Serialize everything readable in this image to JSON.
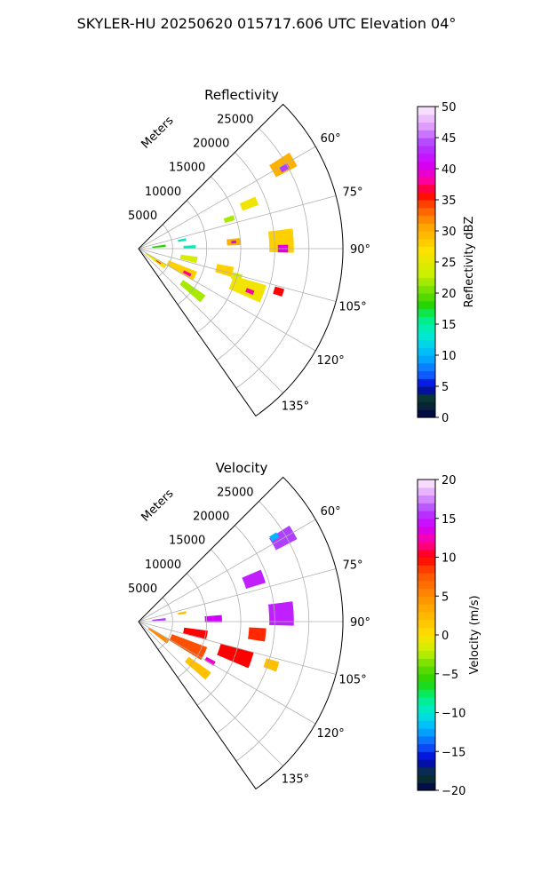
{
  "figure_title": "SKYLER-HU  20250620  015717.606 UTC Elevation 04°",
  "colors": {
    "grid": "#b0b0b0",
    "frame": "#000000"
  },
  "chart_data": [
    {
      "type": "heatmap",
      "projection": "polar-sector",
      "title": "Reflectivity",
      "radial_label": "Meters",
      "radial_ticks": [
        "5000",
        "10000",
        "15000",
        "20000",
        "25000"
      ],
      "radial_tick_values": [
        5000,
        10000,
        15000,
        20000,
        25000
      ],
      "rlim": [
        0,
        30000
      ],
      "angle_ticks": [
        "60°",
        "75°",
        "90°",
        "105°",
        "120°",
        "135°"
      ],
      "angle_tick_values": [
        60,
        75,
        90,
        105,
        120,
        135
      ],
      "theta_range_deg": [
        45,
        145
      ],
      "colorbar": {
        "label": "Reflectivity dBZ",
        "min": 0,
        "max": 50,
        "ticks": [
          "0",
          "5",
          "10",
          "15",
          "20",
          "25",
          "30",
          "35",
          "40",
          "45",
          "50"
        ],
        "stops": [
          [
            0,
            "#00004a"
          ],
          [
            3,
            "#0a3a2a"
          ],
          [
            5,
            "#0000d0"
          ],
          [
            7,
            "#1060ff"
          ],
          [
            10,
            "#00b4ff"
          ],
          [
            13,
            "#00e8d8"
          ],
          [
            16,
            "#00f080"
          ],
          [
            18,
            "#22d400"
          ],
          [
            20,
            "#66dd00"
          ],
          [
            23,
            "#c8f000"
          ],
          [
            27,
            "#ffe000"
          ],
          [
            31,
            "#ffa000"
          ],
          [
            34,
            "#ff5000"
          ],
          [
            36,
            "#ff0000"
          ],
          [
            38,
            "#ff00a0"
          ],
          [
            41,
            "#d000ff"
          ],
          [
            44,
            "#b040ff"
          ],
          [
            47,
            "#e0a0ff"
          ],
          [
            50,
            "#fff0ff"
          ]
        ]
      },
      "echoes": [
        {
          "theta": 60,
          "r": 24500,
          "width": 5,
          "depth": 3500,
          "value": 30
        },
        {
          "theta": 61,
          "r": 24500,
          "width": 2,
          "depth": 1300,
          "value": 44
        },
        {
          "theta": 68,
          "r": 17500,
          "width": 4,
          "depth": 2500,
          "value": 26
        },
        {
          "theta": 72,
          "r": 14000,
          "width": 3,
          "depth": 1500,
          "value": 22
        },
        {
          "theta": 79,
          "r": 6500,
          "width": 3,
          "depth": 1200,
          "value": 14
        },
        {
          "theta": 84,
          "r": 3000,
          "width": 5,
          "depth": 2000,
          "value": 18
        },
        {
          "theta": 88,
          "r": 7500,
          "width": 3,
          "depth": 1800,
          "value": 14
        },
        {
          "theta": 87,
          "r": 21000,
          "width": 9,
          "depth": 3600,
          "value": 28
        },
        {
          "theta": 90,
          "r": 21200,
          "width": 3,
          "depth": 1500,
          "value": 40
        },
        {
          "theta": 86,
          "r": 14000,
          "width": 4,
          "depth": 2000,
          "value": 30
        },
        {
          "theta": 86,
          "r": 14000,
          "width": 1.6,
          "depth": 700,
          "value": 42
        },
        {
          "theta": 101,
          "r": 7500,
          "width": 6,
          "depth": 2500,
          "value": 24
        },
        {
          "theta": 104,
          "r": 13000,
          "width": 6,
          "depth": 2500,
          "value": 28
        },
        {
          "theta": 106,
          "r": 15000,
          "width": 4,
          "depth": 1500,
          "value": 24
        },
        {
          "theta": 116,
          "r": 7000,
          "width": 9,
          "depth": 4500,
          "value": 28
        },
        {
          "theta": 117,
          "r": 8000,
          "width": 3,
          "depth": 1200,
          "value": 38
        },
        {
          "theta": 110,
          "r": 17000,
          "width": 8,
          "depth": 5000,
          "value": 26
        },
        {
          "theta": 111,
          "r": 17500,
          "width": 2,
          "depth": 1200,
          "value": 38
        },
        {
          "theta": 107,
          "r": 21500,
          "width": 3,
          "depth": 1400,
          "value": 36
        },
        {
          "theta": 124,
          "r": 3000,
          "width": 8,
          "depth": 3500,
          "value": 26
        },
        {
          "theta": 124,
          "r": 3500,
          "width": 2,
          "depth": 800,
          "value": 36
        },
        {
          "theta": 128,
          "r": 10000,
          "width": 6,
          "depth": 4000,
          "value": 22
        }
      ]
    },
    {
      "type": "heatmap",
      "projection": "polar-sector",
      "title": "Velocity",
      "radial_label": "Meters",
      "radial_ticks": [
        "5000",
        "10000",
        "15000",
        "20000",
        "25000"
      ],
      "radial_tick_values": [
        5000,
        10000,
        15000,
        20000,
        25000
      ],
      "rlim": [
        0,
        30000
      ],
      "angle_ticks": [
        "60°",
        "75°",
        "90°",
        "105°",
        "120°",
        "135°"
      ],
      "angle_tick_values": [
        60,
        75,
        90,
        105,
        120,
        135
      ],
      "theta_range_deg": [
        45,
        145
      ],
      "colorbar": {
        "label": "Velocity (m/s)",
        "min": -20,
        "max": 20,
        "ticks": [
          "−20",
          "−15",
          "−10",
          "−5",
          "0",
          "5",
          "10",
          "15",
          "20"
        ],
        "stops": [
          [
            -20,
            "#00004a"
          ],
          [
            -18,
            "#0a3a2a"
          ],
          [
            -16,
            "#0000d0"
          ],
          [
            -14,
            "#1060ff"
          ],
          [
            -12,
            "#00b4ff"
          ],
          [
            -10,
            "#00e8d8"
          ],
          [
            -8,
            "#00f080"
          ],
          [
            -6,
            "#22d400"
          ],
          [
            -4,
            "#66dd00"
          ],
          [
            -2,
            "#c8f000"
          ],
          [
            0,
            "#ffe000"
          ],
          [
            4,
            "#ffa000"
          ],
          [
            8,
            "#ff5000"
          ],
          [
            10,
            "#ff0000"
          ],
          [
            12,
            "#ff00a0"
          ],
          [
            14,
            "#d000ff"
          ],
          [
            16,
            "#b040ff"
          ],
          [
            18,
            "#e0a0ff"
          ],
          [
            20,
            "#fff0ff"
          ]
        ]
      },
      "echoes": [
        {
          "theta": 60,
          "r": 24500,
          "width": 5,
          "depth": 3500,
          "value": 16
        },
        {
          "theta": 58,
          "r": 23500,
          "width": 2,
          "depth": 1200,
          "value": -12
        },
        {
          "theta": 70,
          "r": 18000,
          "width": 6,
          "depth": 3000,
          "value": 15
        },
        {
          "theta": 79,
          "r": 6500,
          "width": 3,
          "depth": 1200,
          "value": 2
        },
        {
          "theta": 85,
          "r": 3000,
          "width": 5,
          "depth": 2000,
          "value": 16
        },
        {
          "theta": 88,
          "r": 11000,
          "width": 5,
          "depth": 2500,
          "value": 14
        },
        {
          "theta": 87,
          "r": 21000,
          "width": 9,
          "depth": 3600,
          "value": 15
        },
        {
          "theta": 96,
          "r": 17500,
          "width": 6,
          "depth": 2500,
          "value": 9
        },
        {
          "theta": 101,
          "r": 8500,
          "width": 7,
          "depth": 3500,
          "value": 10
        },
        {
          "theta": 109,
          "r": 15000,
          "width": 8,
          "depth": 5000,
          "value": 10
        },
        {
          "theta": 116,
          "r": 8000,
          "width": 11,
          "depth": 5500,
          "value": 8
        },
        {
          "theta": 119,
          "r": 12000,
          "width": 3,
          "depth": 1500,
          "value": 13
        },
        {
          "theta": 108,
          "r": 20500,
          "width": 4,
          "depth": 2000,
          "value": 2
        },
        {
          "theta": 124,
          "r": 3500,
          "width": 8,
          "depth": 3500,
          "value": 5
        },
        {
          "theta": 128,
          "r": 11000,
          "width": 6,
          "depth": 4000,
          "value": 2
        }
      ]
    }
  ]
}
